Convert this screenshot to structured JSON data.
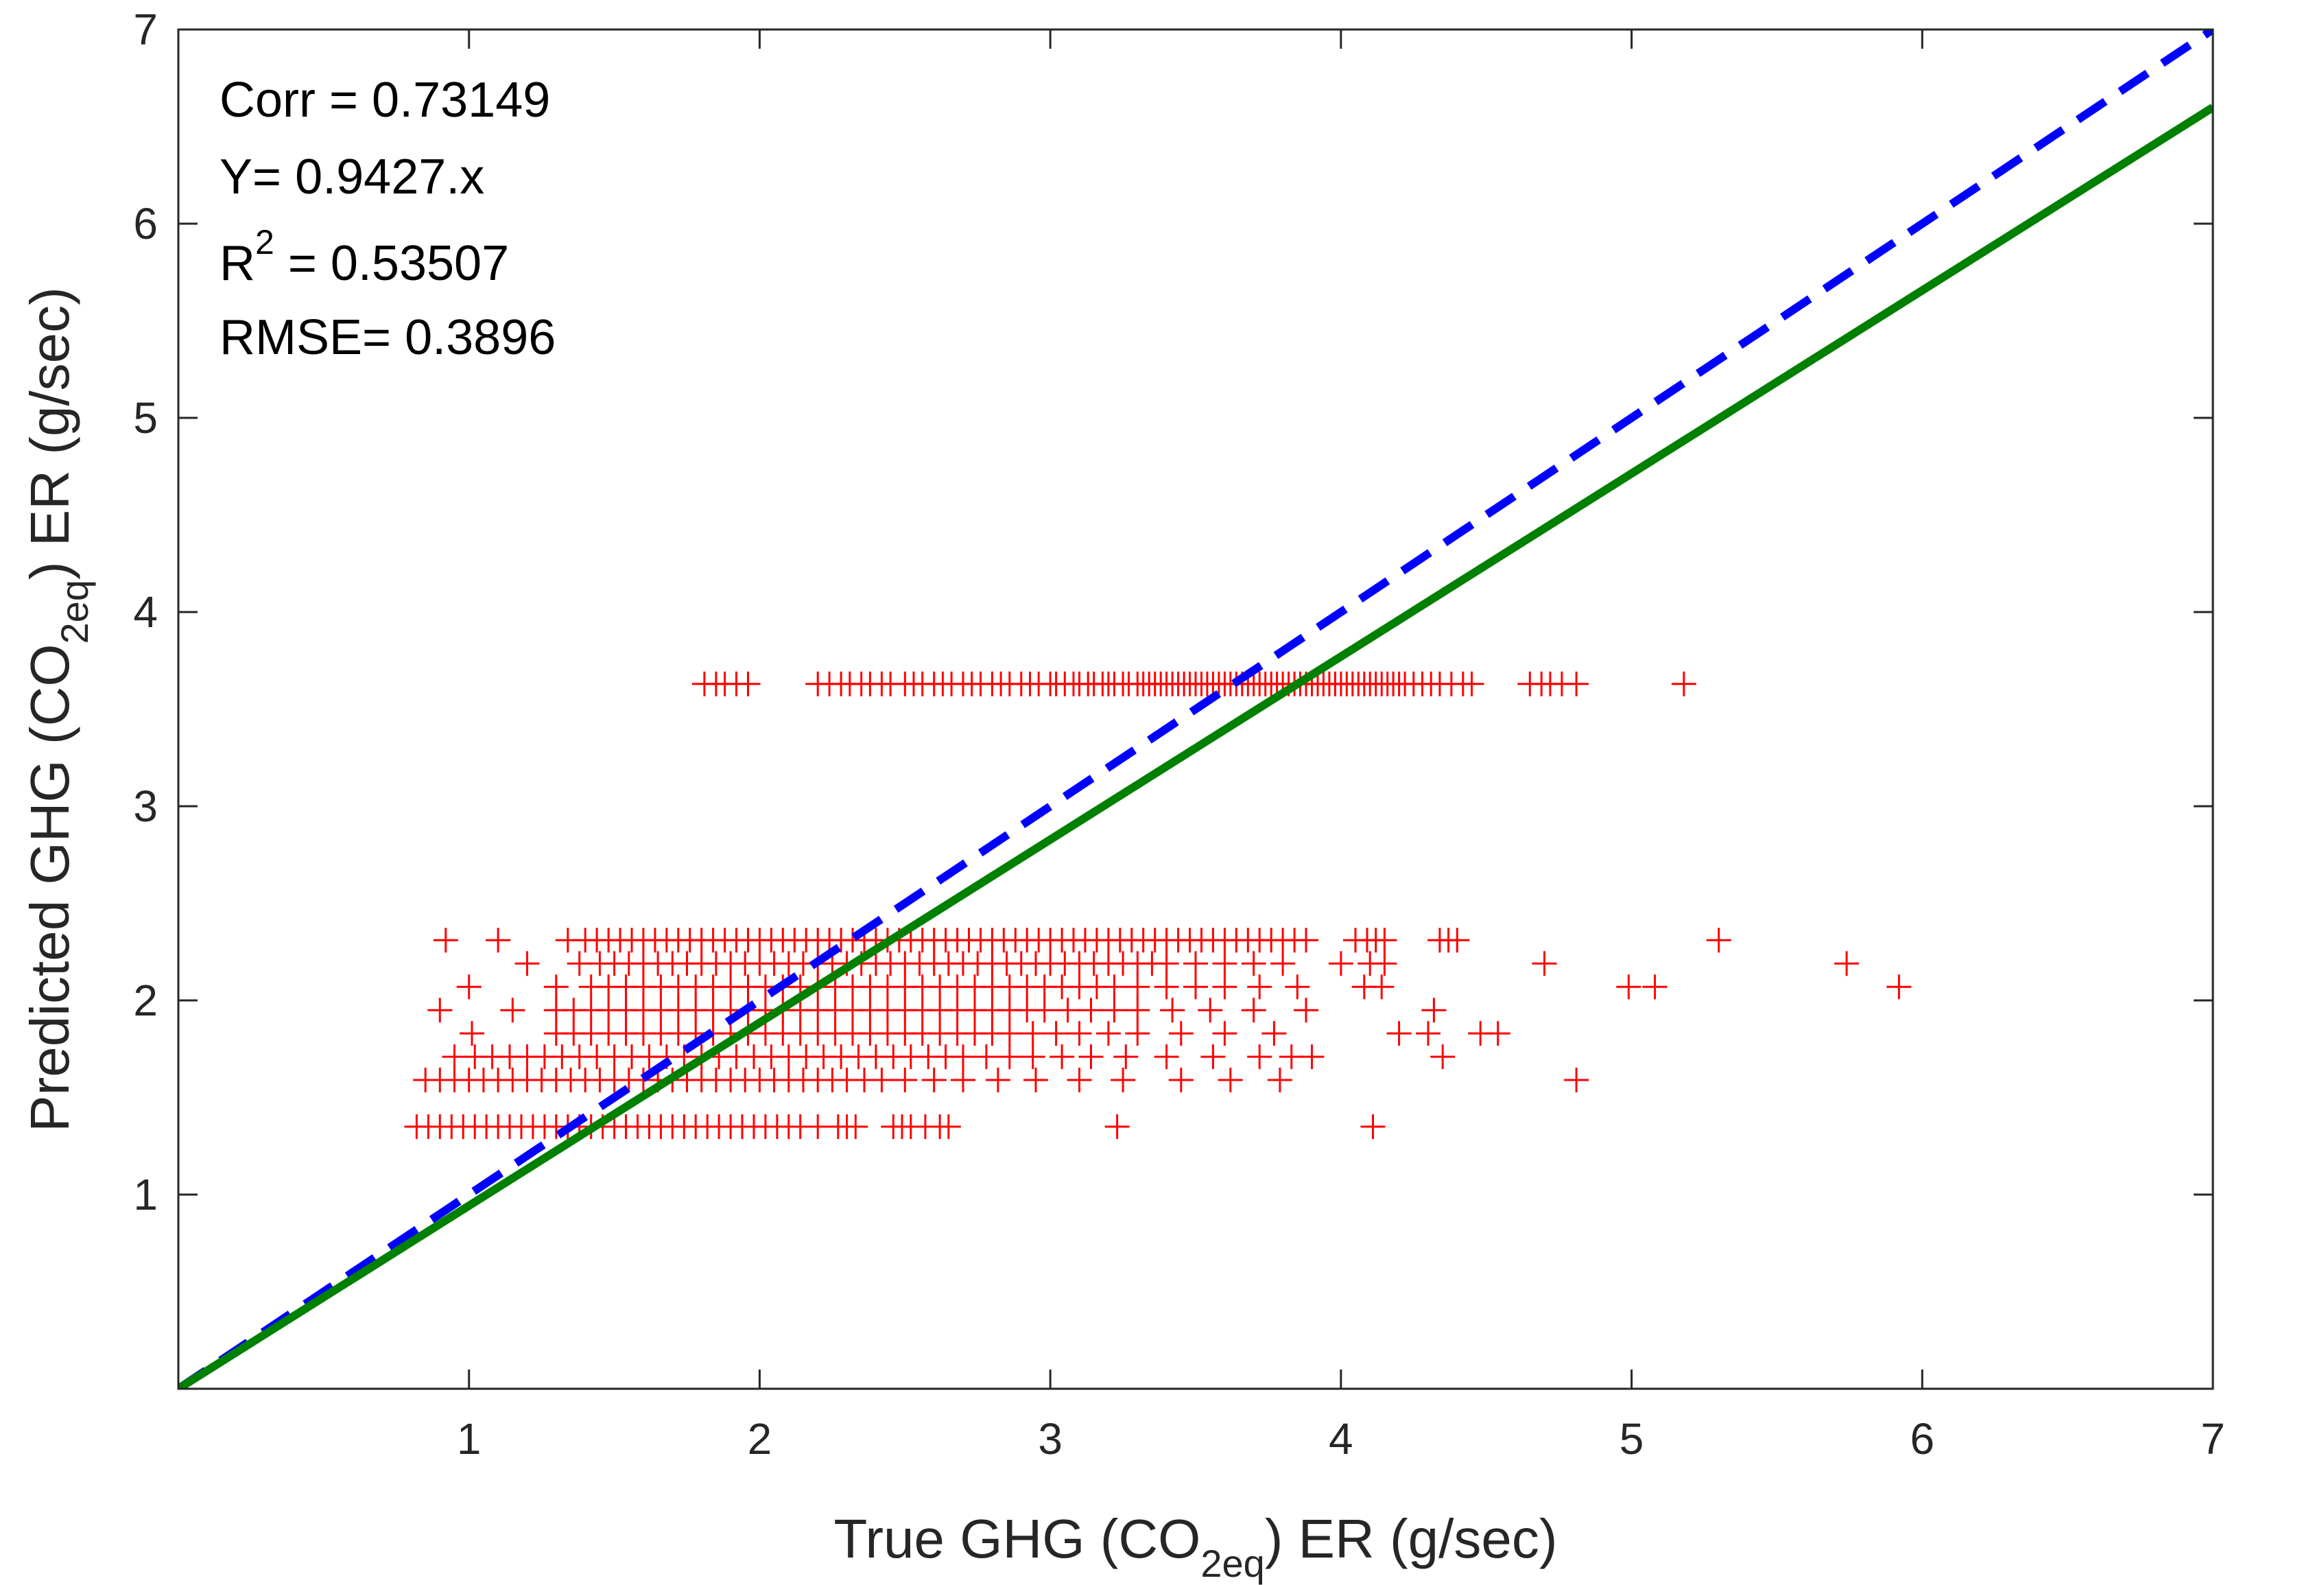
{
  "chart_data": {
    "type": "scatter",
    "title": "",
    "xlabel": {
      "pre": "True GHG (CO",
      "sub": "2eq",
      "post": ") ER (g/sec)"
    },
    "ylabel": {
      "pre": "Predicted GHG (CO",
      "sub": "2eq",
      "post": ") ER (g/sec)"
    },
    "xlim": [
      0,
      7
    ],
    "ylim": [
      0,
      7
    ],
    "xticks": [
      "1",
      "2",
      "3",
      "4",
      "5",
      "6",
      "7"
    ],
    "yticks": [
      "1",
      "2",
      "3",
      "4",
      "5",
      "6",
      "7"
    ],
    "grid": false,
    "marker": "+",
    "colors": {
      "points": "#ff0000",
      "identity_line": "#0000ff",
      "fit_line": "#008000",
      "axes": "#262626"
    },
    "annotations": {
      "corr": "Corr = 0.73149",
      "equation": "Y= 0.9427.x",
      "r2_pre": "R",
      "r2_sup": "2",
      "r2_post": " = 0.53507",
      "rmse": "RMSE= 0.3896"
    },
    "lines": [
      {
        "style": "dashed",
        "color": "#0000ff",
        "slope": 1.0
      },
      {
        "style": "solid",
        "color": "#008000",
        "slope": 0.9427
      }
    ],
    "series": [
      {
        "color": "#ff0000",
        "levels": [
          {
            "y": 3.63,
            "x": [
              1.81,
              1.85,
              1.88,
              1.92,
              1.96,
              2.2,
              2.24,
              2.28,
              2.31,
              2.35,
              2.38,
              2.42,
              2.45,
              2.5,
              2.53,
              2.56,
              2.6,
              2.63,
              2.66,
              2.7,
              2.73,
              2.76,
              2.8,
              2.83,
              2.86,
              2.9,
              2.93,
              2.96,
              3.0,
              3.02,
              3.05,
              3.08,
              3.1,
              3.13,
              3.15,
              3.18,
              3.2,
              3.22,
              3.25,
              3.27,
              3.3,
              3.32,
              3.34,
              3.36,
              3.38,
              3.4,
              3.42,
              3.44,
              3.46,
              3.48,
              3.5,
              3.52,
              3.54,
              3.56,
              3.58,
              3.6,
              3.62,
              3.64,
              3.66,
              3.68,
              3.7,
              3.72,
              3.74,
              3.76,
              3.78,
              3.8,
              3.82,
              3.84,
              3.86,
              3.88,
              3.9,
              3.92,
              3.94,
              3.96,
              3.98,
              4.0,
              4.02,
              4.04,
              4.06,
              4.08,
              4.1,
              4.12,
              4.14,
              4.16,
              4.18,
              4.2,
              4.22,
              4.25,
              4.28,
              4.31,
              4.34,
              4.38,
              4.42,
              4.45,
              4.65,
              4.69,
              4.72,
              4.76,
              4.81,
              5.18
            ]
          },
          {
            "y": 2.31,
            "x": [
              0.92,
              1.1,
              1.34,
              1.4,
              1.44,
              1.48,
              1.52,
              1.56,
              1.6,
              1.64,
              1.68,
              1.72,
              1.76,
              1.8,
              1.84,
              1.88,
              1.92,
              1.96,
              2.0,
              2.04,
              2.08,
              2.12,
              2.16,
              2.2,
              2.24,
              2.28,
              2.32,
              2.36,
              2.4,
              2.44,
              2.48,
              2.52,
              2.56,
              2.6,
              2.64,
              2.68,
              2.72,
              2.76,
              2.8,
              2.84,
              2.88,
              2.92,
              2.96,
              3.0,
              3.04,
              3.08,
              3.12,
              3.16,
              3.2,
              3.24,
              3.28,
              3.32,
              3.36,
              3.4,
              3.44,
              3.48,
              3.52,
              3.56,
              3.6,
              3.64,
              3.68,
              3.72,
              3.76,
              3.8,
              3.84,
              3.88,
              4.05,
              4.09,
              4.12,
              4.15,
              4.34,
              4.37,
              4.4,
              5.3
            ]
          },
          {
            "y": 2.19,
            "x": [
              1.2,
              1.38,
              1.45,
              1.5,
              1.55,
              1.6,
              1.65,
              1.7,
              1.75,
              1.8,
              1.85,
              1.9,
              1.95,
              2.0,
              2.05,
              2.1,
              2.15,
              2.2,
              2.25,
              2.3,
              2.35,
              2.4,
              2.45,
              2.5,
              2.55,
              2.6,
              2.65,
              2.7,
              2.75,
              2.8,
              2.85,
              2.9,
              2.95,
              3.0,
              3.05,
              3.1,
              3.15,
              3.2,
              3.25,
              3.3,
              3.35,
              3.4,
              3.5,
              3.6,
              3.7,
              3.8,
              4.0,
              4.1,
              4.15,
              4.7,
              5.74
            ]
          },
          {
            "y": 2.07,
            "x": [
              1.0,
              1.3,
              1.42,
              1.48,
              1.54,
              1.6,
              1.66,
              1.72,
              1.78,
              1.84,
              1.9,
              1.96,
              2.02,
              2.08,
              2.14,
              2.2,
              2.26,
              2.32,
              2.38,
              2.44,
              2.5,
              2.56,
              2.62,
              2.68,
              2.74,
              2.8,
              2.86,
              2.92,
              2.98,
              3.04,
              3.1,
              3.16,
              3.22,
              3.3,
              3.4,
              3.5,
              3.6,
              3.72,
              3.85,
              4.08,
              4.14,
              4.99,
              5.08,
              5.92
            ]
          },
          {
            "y": 1.95,
            "x": [
              0.9,
              1.15,
              1.3,
              1.36,
              1.42,
              1.48,
              1.54,
              1.6,
              1.66,
              1.72,
              1.78,
              1.84,
              1.9,
              1.96,
              2.02,
              2.08,
              2.14,
              2.2,
              2.26,
              2.32,
              2.38,
              2.44,
              2.5,
              2.56,
              2.62,
              2.68,
              2.74,
              2.8,
              2.86,
              2.92,
              2.98,
              3.06,
              3.14,
              3.22,
              3.3,
              3.42,
              3.55,
              3.7,
              3.88,
              4.32
            ]
          },
          {
            "y": 1.83,
            "x": [
              1.01,
              1.3,
              1.36,
              1.42,
              1.48,
              1.54,
              1.6,
              1.66,
              1.72,
              1.78,
              1.84,
              1.9,
              1.96,
              2.02,
              2.08,
              2.14,
              2.2,
              2.26,
              2.32,
              2.38,
              2.44,
              2.5,
              2.56,
              2.62,
              2.68,
              2.74,
              2.8,
              2.86,
              2.94,
              3.02,
              3.1,
              3.2,
              3.3,
              3.45,
              3.6,
              3.77,
              4.2,
              4.3,
              4.48,
              4.54
            ]
          },
          {
            "y": 1.71,
            "x": [
              0.95,
              1.02,
              1.08,
              1.14,
              1.2,
              1.26,
              1.32,
              1.38,
              1.44,
              1.5,
              1.56,
              1.62,
              1.68,
              1.74,
              1.8,
              1.86,
              1.92,
              1.98,
              2.04,
              2.1,
              2.16,
              2.22,
              2.28,
              2.34,
              2.4,
              2.46,
              2.52,
              2.58,
              2.64,
              2.7,
              2.78,
              2.86,
              2.94,
              3.04,
              3.14,
              3.26,
              3.4,
              3.56,
              3.72,
              3.83,
              3.9,
              4.35
            ]
          },
          {
            "y": 1.59,
            "x": [
              0.85,
              0.9,
              0.95,
              1.0,
              1.05,
              1.1,
              1.15,
              1.2,
              1.25,
              1.3,
              1.35,
              1.4,
              1.45,
              1.5,
              1.55,
              1.6,
              1.65,
              1.7,
              1.75,
              1.8,
              1.85,
              1.9,
              1.95,
              2.0,
              2.05,
              2.1,
              2.15,
              2.2,
              2.25,
              2.3,
              2.36,
              2.42,
              2.5,
              2.6,
              2.7,
              2.82,
              2.95,
              3.1,
              3.25,
              3.45,
              3.62,
              3.79,
              4.81
            ]
          },
          {
            "y": 1.35,
            "x": [
              0.82,
              0.86,
              0.9,
              0.94,
              0.98,
              1.02,
              1.06,
              1.1,
              1.14,
              1.18,
              1.22,
              1.26,
              1.3,
              1.34,
              1.38,
              1.42,
              1.46,
              1.5,
              1.54,
              1.58,
              1.62,
              1.66,
              1.7,
              1.74,
              1.78,
              1.82,
              1.86,
              1.9,
              1.94,
              1.98,
              2.02,
              2.06,
              2.1,
              2.14,
              2.2,
              2.27,
              2.3,
              2.33,
              2.46,
              2.49,
              2.52,
              2.57,
              2.62,
              2.65,
              3.23,
              4.11
            ]
          }
        ]
      }
    ]
  }
}
